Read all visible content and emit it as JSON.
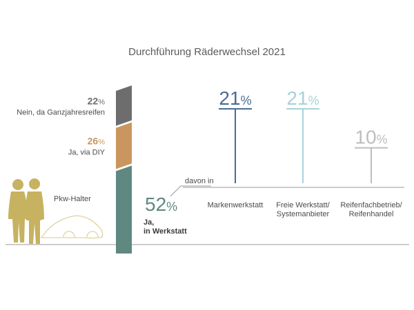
{
  "chart_data": [
    {
      "type": "bar",
      "title": "Durchführung  Räderwechsel 2021",
      "categories": [
        "Nein, da Ganzjahresreifen",
        "Ja, via DIY",
        "Ja, in Werkstatt"
      ],
      "values": [
        22,
        26,
        52
      ],
      "value_labels": [
        "22",
        "26",
        "52"
      ],
      "unit": "%",
      "label_lines": [
        [
          "Nein, da Ganzjahresreifen"
        ],
        [
          "Ja, via DIY"
        ],
        [
          "Ja,",
          "in Werkstatt"
        ]
      ],
      "colors": [
        "#6d6d6d",
        "#c9965f",
        "#5f8880"
      ],
      "stacked": true
    },
    {
      "type": "bar",
      "intro_label": "davon in",
      "categories": [
        "Markenwerkstatt",
        "Freie Werkstatt/ Systemanbieter",
        "Reifenfachbetrieb/ Reifenhandel"
      ],
      "label_lines": [
        [
          "Markenwerkstatt"
        ],
        [
          "Freie Werkstatt/",
          "Systemanbieter"
        ],
        [
          "Reifenfachbetrieb/",
          "Reifenhandel"
        ]
      ],
      "values": [
        21,
        21,
        10
      ],
      "value_labels": [
        "21",
        "21",
        "10"
      ],
      "unit": "%",
      "colors": [
        "#4a6c94",
        "#a8d2da",
        "#bdbdbd"
      ],
      "ylim": [
        0,
        21
      ]
    }
  ],
  "figure": {
    "caption": "Pkw-Halter",
    "silhouette_color": "#c6b260",
    "car_outline_color": "#ddd39f",
    "ground_color": "#9a9a9a"
  }
}
